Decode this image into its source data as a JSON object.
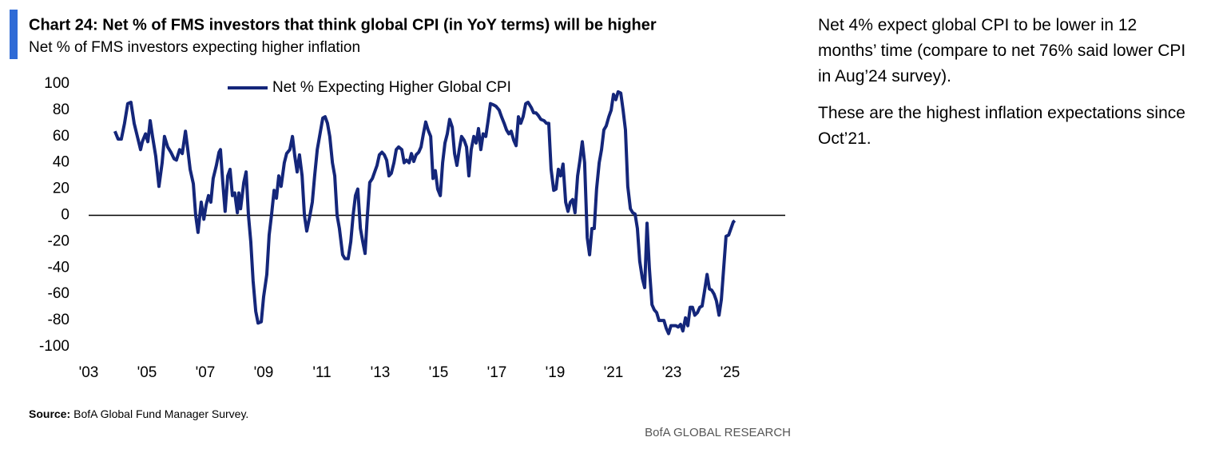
{
  "chart_data": {
    "type": "line",
    "title": "Chart 24: Net % of FMS investors that think global CPI (in YoY terms) will be higher",
    "subtitle": "Net % of FMS investors expecting higher inflation",
    "x": [
      2003.9,
      2004.01,
      2004.12,
      2004.23,
      2004.34,
      2004.45,
      2004.56,
      2004.67,
      2004.78,
      2004.84,
      2004.95,
      2005.03,
      2005.11,
      2005.19,
      2005.3,
      2005.41,
      2005.52,
      2005.6,
      2005.71,
      2005.82,
      2005.93,
      2006.01,
      2006.12,
      2006.21,
      2006.32,
      2006.4,
      2006.48,
      2006.59,
      2006.67,
      2006.75,
      2006.86,
      2006.95,
      2007.03,
      2007.11,
      2007.19,
      2007.27,
      2007.38,
      2007.47,
      2007.52,
      2007.6,
      2007.68,
      2007.77,
      2007.85,
      2007.93,
      2008.01,
      2008.1,
      2008.15,
      2008.21,
      2008.32,
      2008.4,
      2008.48,
      2008.56,
      2008.64,
      2008.73,
      2008.81,
      2008.92,
      2009.0,
      2009.11,
      2009.19,
      2009.27,
      2009.36,
      2009.44,
      2009.52,
      2009.6,
      2009.71,
      2009.79,
      2009.9,
      2009.99,
      2010.07,
      2010.15,
      2010.23,
      2010.32,
      2010.4,
      2010.48,
      2010.59,
      2010.67,
      2010.75,
      2010.84,
      2010.95,
      2011.03,
      2011.11,
      2011.19,
      2011.27,
      2011.36,
      2011.44,
      2011.52,
      2011.6,
      2011.71,
      2011.79,
      2011.9,
      2011.99,
      2012.07,
      2012.15,
      2012.23,
      2012.32,
      2012.4,
      2012.48,
      2012.56,
      2012.64,
      2012.73,
      2012.81,
      2012.89,
      2012.97,
      2013.06,
      2013.14,
      2013.22,
      2013.3,
      2013.38,
      2013.47,
      2013.55,
      2013.63,
      2013.74,
      2013.82,
      2013.9,
      2013.99,
      2014.07,
      2014.15,
      2014.23,
      2014.32,
      2014.4,
      2014.48,
      2014.56,
      2014.64,
      2014.73,
      2014.81,
      2014.89,
      2014.97,
      2015.06,
      2015.14,
      2015.22,
      2015.3,
      2015.38,
      2015.47,
      2015.55,
      2015.63,
      2015.71,
      2015.79,
      2015.88,
      2015.96,
      2016.04,
      2016.12,
      2016.21,
      2016.29,
      2016.37,
      2016.45,
      2016.53,
      2016.62,
      2016.7,
      2016.78,
      2016.89,
      2016.97,
      2017.08,
      2017.16,
      2017.25,
      2017.33,
      2017.41,
      2017.49,
      2017.58,
      2017.66,
      2017.74,
      2017.82,
      2017.9,
      2017.99,
      2018.07,
      2018.18,
      2018.26,
      2018.34,
      2018.42,
      2018.51,
      2018.62,
      2018.7,
      2018.78,
      2018.86,
      2018.95,
      2019.03,
      2019.11,
      2019.19,
      2019.27,
      2019.36,
      2019.44,
      2019.52,
      2019.6,
      2019.68,
      2019.77,
      2019.85,
      2019.93,
      2020.01,
      2020.1,
      2020.18,
      2020.26,
      2020.34,
      2020.42,
      2020.51,
      2020.59,
      2020.67,
      2020.75,
      2020.84,
      2020.92,
      2021.0,
      2021.08,
      2021.16,
      2021.25,
      2021.33,
      2021.41,
      2021.49,
      2021.58,
      2021.66,
      2021.74,
      2021.82,
      2021.9,
      2021.99,
      2022.07,
      2022.15,
      2022.23,
      2022.32,
      2022.4,
      2022.48,
      2022.56,
      2022.64,
      2022.73,
      2022.81,
      2022.89,
      2022.97,
      2023.06,
      2023.14,
      2023.22,
      2023.3,
      2023.38,
      2023.47,
      2023.55,
      2023.63,
      2023.71,
      2023.79,
      2023.88,
      2023.96,
      2024.04,
      2024.12,
      2024.21,
      2024.29,
      2024.37,
      2024.45,
      2024.53,
      2024.62,
      2024.7,
      2024.78,
      2024.86,
      2024.95,
      2025.03,
      2025.11,
      2025.16
    ],
    "series": [
      {
        "name": "Net % Expecting Higher Global CPI",
        "color": "#14267a",
        "values": [
          64,
          58,
          58,
          70,
          85,
          86,
          70,
          60,
          50,
          56,
          62,
          56,
          72,
          60,
          45,
          22,
          40,
          60,
          52,
          48,
          43,
          42,
          50,
          47,
          64,
          50,
          35,
          24,
          0,
          -13,
          10,
          -3,
          8,
          15,
          10,
          28,
          38,
          48,
          50,
          25,
          3,
          30,
          35,
          15,
          17,
          2,
          17,
          5,
          25,
          33,
          0,
          -20,
          -50,
          -73,
          -82,
          -81,
          -62,
          -45,
          -15,
          0,
          19,
          13,
          30,
          22,
          40,
          47,
          50,
          60,
          45,
          33,
          46,
          30,
          0,
          -12,
          0,
          10,
          30,
          50,
          64,
          74,
          75,
          70,
          60,
          40,
          30,
          0,
          -10,
          -30,
          -33,
          -33,
          -20,
          0,
          15,
          20,
          -10,
          -20,
          -29,
          0,
          25,
          28,
          33,
          38,
          46,
          48,
          46,
          42,
          30,
          32,
          40,
          50,
          52,
          50,
          40,
          42,
          40,
          47,
          41,
          46,
          48,
          52,
          62,
          71,
          65,
          60,
          28,
          34,
          20,
          15,
          40,
          55,
          62,
          73,
          67,
          47,
          38,
          50,
          60,
          57,
          52,
          30,
          50,
          60,
          55,
          66,
          50,
          62,
          60,
          72,
          85,
          84,
          83,
          80,
          75,
          70,
          65,
          62,
          64,
          57,
          53,
          75,
          70,
          75,
          85,
          86,
          82,
          78,
          78,
          76,
          73,
          72,
          70,
          70,
          35,
          19,
          20,
          35,
          30,
          39,
          10,
          3,
          10,
          12,
          2,
          30,
          42,
          56,
          40,
          -17,
          -30,
          -10,
          -10,
          20,
          40,
          50,
          65,
          68,
          75,
          80,
          92,
          88,
          94,
          93,
          80,
          65,
          22,
          5,
          2,
          1,
          -10,
          -35,
          -48,
          -55,
          -6,
          -40,
          -68,
          -72,
          -74,
          -80,
          -80,
          -80,
          -86,
          -90,
          -84,
          -84,
          -84,
          -85,
          -83,
          -88,
          -78,
          -84,
          -70,
          -70,
          -76,
          -74,
          -70,
          -69,
          -58,
          -45,
          -56,
          -57,
          -60,
          -65,
          -76,
          -64,
          -40,
          -16,
          -15,
          -10,
          -5,
          -4
        ]
      }
    ],
    "xlim": [
      2003,
      2027
    ],
    "xticks": [
      {
        "value": 2003,
        "label": "'03"
      },
      {
        "value": 2005,
        "label": "'05"
      },
      {
        "value": 2007,
        "label": "'07"
      },
      {
        "value": 2009,
        "label": "'09"
      },
      {
        "value": 2011,
        "label": "'11"
      },
      {
        "value": 2013,
        "label": "'13"
      },
      {
        "value": 2015,
        "label": "'15"
      },
      {
        "value": 2017,
        "label": "'17"
      },
      {
        "value": 2019,
        "label": "'19"
      },
      {
        "value": 2021,
        "label": "'21"
      },
      {
        "value": 2023,
        "label": "'23"
      },
      {
        "value": 2025,
        "label": "'25"
      }
    ],
    "ylim": [
      -100,
      100
    ],
    "yticks": [
      100,
      80,
      60,
      40,
      20,
      0,
      -20,
      -40,
      -60,
      -80,
      -100
    ],
    "grid": false,
    "zero_line": true,
    "legend": "top"
  },
  "source": {
    "label": "Source:",
    "text": "BofA Global Fund Manager Survey."
  },
  "brand": "BofA GLOBAL RESEARCH",
  "notes": [
    "Net 4% expect global CPI to be lower in 12 months’ time (compare to net 76% said lower CPI in Aug’24 survey).",
    "These are the highest inflation expectations since Oct’21."
  ]
}
